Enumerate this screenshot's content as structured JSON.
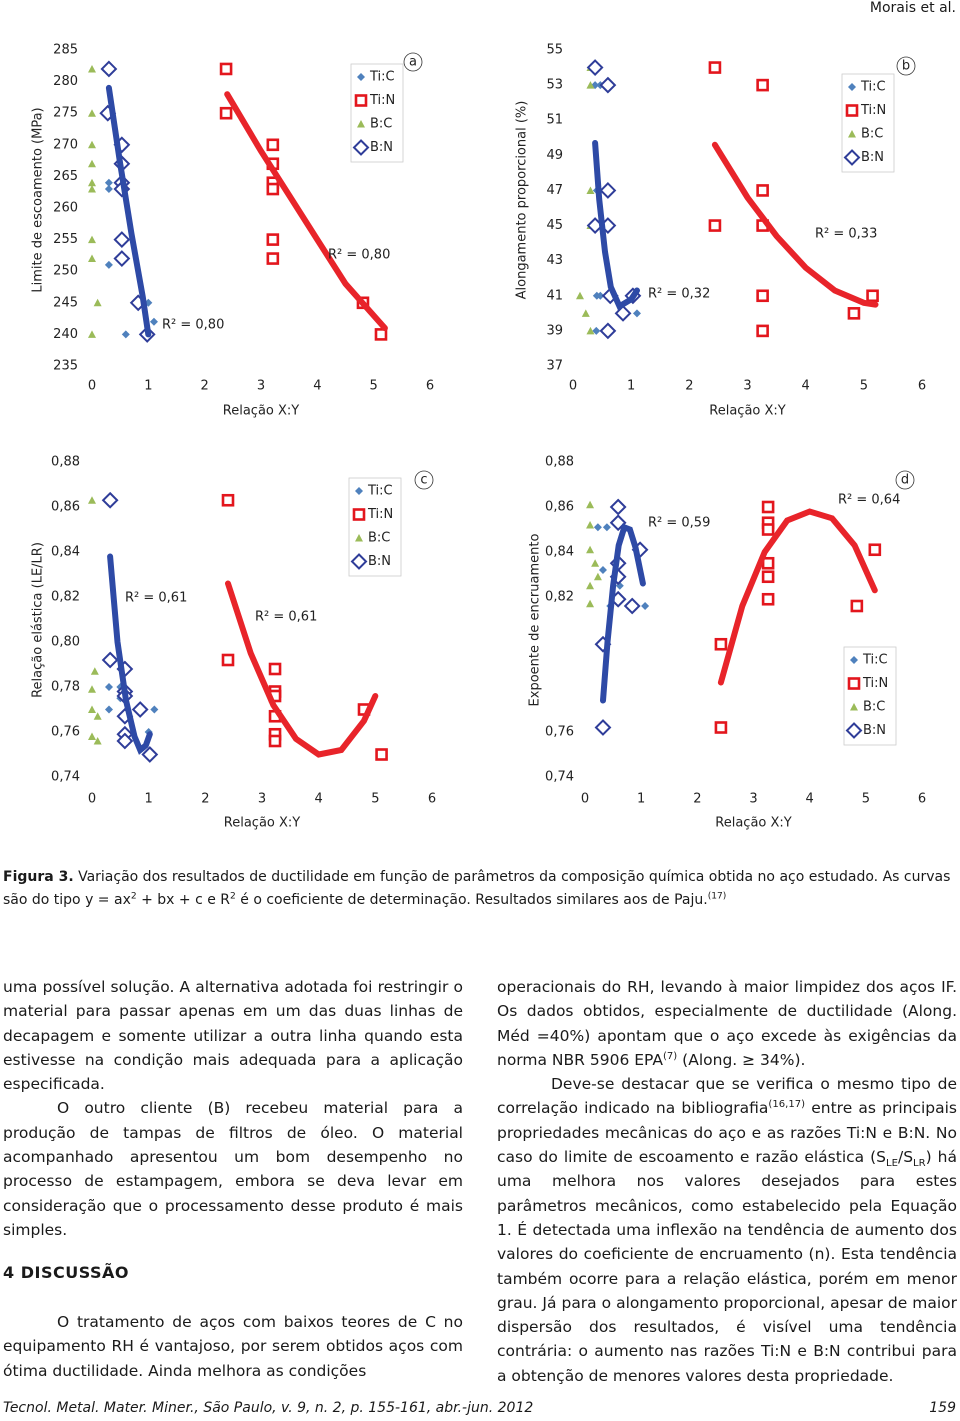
{
  "header": {
    "author": "Morais et al."
  },
  "chart_data": [
    {
      "type": "scatter",
      "panel_label": "a",
      "ylabel": "Limite de escoamento (MPa)",
      "xlabel": "Relação X:Y",
      "xlim": [
        0,
        6
      ],
      "xticks": [
        0,
        1,
        2,
        3,
        4,
        5,
        6
      ],
      "ylim": [
        235,
        285
      ],
      "yticks": [
        235,
        240,
        245,
        250,
        255,
        260,
        265,
        270,
        275,
        280,
        285
      ],
      "grid": false,
      "legend": "upper right",
      "series": [
        {
          "name": "Ti:C",
          "color": "#4f81bd",
          "marker": "diamond",
          "x": [
            0.3,
            0.3,
            0.5,
            0.5,
            0.5,
            0.6,
            0.3,
            0.6,
            1.0,
            1.1
          ],
          "values": [
            264,
            263,
            264,
            263,
            255,
            252,
            251,
            240,
            245,
            242
          ]
        },
        {
          "name": "Ti:N",
          "color": "#e3161d",
          "marker": "square",
          "x": [
            2.38,
            2.38,
            3.21,
            3.21,
            3.21,
            3.21,
            3.21,
            3.21,
            4.81,
            5.13
          ],
          "values": [
            282,
            275,
            270,
            267,
            264,
            263,
            255,
            252,
            245,
            240
          ]
        },
        {
          "name": "B:C",
          "color": "#9bbb59",
          "marker": "triangle",
          "x": [
            0,
            0,
            0,
            0,
            0,
            0,
            0,
            0,
            0.1,
            0
          ],
          "values": [
            282,
            275,
            270,
            267,
            264,
            263,
            255,
            252,
            245,
            240
          ]
        },
        {
          "name": "B:N",
          "color": "#2f3d99",
          "marker": "open-diamond",
          "x": [
            0.3,
            0.28,
            0.53,
            0.53,
            0.53,
            0.53,
            0.53,
            0.53,
            0.82,
            0.98
          ],
          "values": [
            282,
            275,
            270,
            267,
            264,
            263,
            255,
            252,
            245,
            240
          ]
        }
      ],
      "trendlines": [
        {
          "label": "R² = 0,80",
          "color": "#2e4aa6",
          "x": [
            0.3,
            0.5,
            0.7,
            0.9,
            1.0
          ],
          "y": [
            279,
            267,
            256,
            246,
            240
          ]
        },
        {
          "label": "R² = 0,80",
          "color": "#e8242a",
          "x": [
            2.4,
            3.0,
            3.5,
            4.0,
            4.5,
            5.2
          ],
          "y": [
            278,
            269,
            262,
            255,
            248,
            241
          ]
        }
      ]
    },
    {
      "type": "scatter",
      "panel_label": "b",
      "ylabel": "Alongamento proporcional (%)",
      "xlabel": "Relação X:Y",
      "xlim": [
        0,
        6
      ],
      "xticks": [
        0,
        1,
        2,
        3,
        4,
        5,
        6
      ],
      "ylim": [
        37,
        55
      ],
      "yticks": [
        37,
        39,
        41,
        43,
        45,
        47,
        49,
        51,
        53,
        55
      ],
      "grid": false,
      "legend": "upper right",
      "series": [
        {
          "name": "Ti:C",
          "color": "#4f81bd",
          "marker": "diamond",
          "x": [
            0.38,
            0.47,
            0.41,
            0.47,
            0.41,
            0.47,
            0.4,
            1.1
          ],
          "values": [
            53,
            53,
            47,
            45,
            41,
            41,
            39,
            40
          ]
        },
        {
          "name": "Ti:N",
          "color": "#e3161d",
          "marker": "square",
          "x": [
            2.44,
            3.26,
            3.26,
            2.44,
            3.26,
            3.26,
            3.26,
            4.83,
            5.15
          ],
          "values": [
            54,
            53,
            47,
            45,
            45,
            41,
            39,
            40,
            41
          ]
        },
        {
          "name": "B:C",
          "color": "#9bbb59",
          "marker": "triangle",
          "x": [
            0.3,
            0.3,
            0.3,
            0.3,
            0.12,
            0.22,
            0.3
          ],
          "values": [
            54,
            53,
            47,
            45,
            41,
            40,
            39
          ]
        },
        {
          "name": "B:N",
          "color": "#2f3d99",
          "marker": "open-diamond",
          "x": [
            0.38,
            0.6,
            0.6,
            0.38,
            0.6,
            0.64,
            0.86,
            0.6,
            1.03
          ],
          "values": [
            54,
            53,
            47,
            45,
            45,
            41,
            40,
            39,
            41
          ]
        }
      ],
      "trendlines": [
        {
          "label": "R² = 0,32",
          "color": "#2e4aa6",
          "x": [
            0.38,
            0.45,
            0.55,
            0.65,
            0.8,
            1.0,
            1.1
          ],
          "y": [
            49.7,
            46.5,
            43.5,
            41.5,
            40.4,
            40.8,
            41.3
          ]
        },
        {
          "label": "R² = 0,33",
          "color": "#e8242a",
          "x": [
            2.44,
            3.0,
            3.5,
            4.0,
            4.5,
            5.0,
            5.2
          ],
          "y": [
            49.6,
            46.6,
            44.4,
            42.6,
            41.3,
            40.6,
            40.5
          ]
        }
      ]
    },
    {
      "type": "scatter",
      "panel_label": "c",
      "ylabel": "Relação elástica (LE/LR)",
      "xlabel": "Relação X:Y",
      "xlim": [
        0,
        6
      ],
      "xticks": [
        0,
        1,
        2,
        3,
        4,
        5,
        6
      ],
      "ylim": [
        0.74,
        0.88
      ],
      "yticks": [
        {
          "value": 0.74,
          "label": "0,74"
        },
        {
          "value": 0.76,
          "label": "0,76"
        },
        {
          "value": 0.78,
          "label": "0,78"
        },
        {
          "value": 0.8,
          "label": "0,80"
        },
        {
          "value": 0.82,
          "label": "0,82"
        },
        {
          "value": 0.84,
          "label": "0,84"
        },
        {
          "value": 0.86,
          "label": "0,86"
        },
        {
          "value": 0.88,
          "label": "0,88"
        }
      ],
      "grid": false,
      "legend": "upper right",
      "series": [
        {
          "name": "Ti:C",
          "color": "#4f81bd",
          "marker": "diamond",
          "x": [
            0.3,
            0.5,
            0.5,
            0.6,
            0.3,
            0.6,
            1.0,
            1.1
          ],
          "values": [
            0.78,
            0.78,
            0.775,
            0.775,
            0.77,
            0.76,
            0.76,
            0.77
          ]
        },
        {
          "name": "Ti:N",
          "color": "#e3161d",
          "marker": "square",
          "x": [
            2.4,
            2.4,
            3.23,
            3.23,
            3.23,
            3.23,
            3.23,
            3.23,
            4.8,
            5.11
          ],
          "values": [
            0.863,
            0.792,
            0.788,
            0.778,
            0.776,
            0.767,
            0.759,
            0.756,
            0.77,
            0.75
          ]
        },
        {
          "name": "B:C",
          "color": "#9bbb59",
          "marker": "triangle",
          "x": [
            0,
            0.05,
            0,
            0,
            0.1,
            0,
            0.1
          ],
          "values": [
            0.863,
            0.787,
            0.779,
            0.77,
            0.767,
            0.758,
            0.756
          ]
        },
        {
          "name": "B:N",
          "color": "#2f3d99",
          "marker": "open-diamond",
          "x": [
            0.32,
            0.32,
            0.58,
            0.58,
            0.58,
            0.58,
            0.58,
            0.58,
            0.85,
            1.02
          ],
          "values": [
            0.863,
            0.792,
            0.788,
            0.778,
            0.776,
            0.767,
            0.759,
            0.756,
            0.77,
            0.75
          ]
        }
      ],
      "trendlines": [
        {
          "label": "R² = 0,61",
          "color": "#2e4aa6",
          "x": [
            0.32,
            0.45,
            0.6,
            0.75,
            0.85,
            0.95,
            1.02
          ],
          "y": [
            0.838,
            0.8,
            0.774,
            0.758,
            0.752,
            0.754,
            0.759
          ]
        },
        {
          "label": "R² = 0,61",
          "color": "#e8242a",
          "x": [
            2.4,
            2.8,
            3.2,
            3.6,
            4.0,
            4.4,
            4.8,
            5.0
          ],
          "y": [
            0.826,
            0.795,
            0.772,
            0.757,
            0.75,
            0.752,
            0.765,
            0.776
          ]
        }
      ]
    },
    {
      "type": "scatter",
      "panel_label": "d",
      "ylabel": "Expoente de encruamento",
      "xlabel": "Relação X:Y",
      "xlim": [
        0,
        6
      ],
      "xticks": [
        0,
        1,
        2,
        3,
        4,
        5,
        6
      ],
      "ylim": [
        0.74,
        0.88
      ],
      "yticks": [
        {
          "value": 0.74,
          "label": "0,74"
        },
        {
          "value": 0.76,
          "label": "0,76"
        },
        {
          "value": 0.82,
          "label": "0,82"
        },
        {
          "value": 0.84,
          "label": "0,84"
        },
        {
          "value": 0.86,
          "label": "0,86"
        },
        {
          "value": 0.88,
          "label": "0,88"
        }
      ],
      "grid": false,
      "legend": "lower right",
      "series": [
        {
          "name": "Ti:C",
          "color": "#4f81bd",
          "marker": "diamond",
          "x": [
            0.23,
            0.39,
            0.32,
            0.45,
            1.07,
            0.62
          ],
          "values": [
            0.851,
            0.851,
            0.832,
            0.816,
            0.816,
            0.825
          ]
        },
        {
          "name": "Ti:N",
          "color": "#e3161d",
          "marker": "square",
          "x": [
            2.42,
            2.42,
            3.26,
            3.26,
            3.26,
            3.26,
            3.26,
            3.26,
            4.84,
            5.16
          ],
          "values": [
            0.799,
            0.762,
            0.86,
            0.853,
            0.85,
            0.835,
            0.829,
            0.819,
            0.816,
            0.841
          ]
        },
        {
          "name": "B:C",
          "color": "#9bbb59",
          "marker": "triangle",
          "x": [
            0.09,
            0.09,
            0.09,
            0.18,
            0.09,
            0.09,
            0.23
          ],
          "values": [
            0.861,
            0.852,
            0.841,
            0.835,
            0.825,
            0.817,
            0.829
          ]
        },
        {
          "name": "B:N",
          "color": "#2f3d99",
          "marker": "open-diamond",
          "x": [
            0.32,
            0.32,
            0.59,
            0.59,
            0.59,
            0.59,
            0.59,
            0.84,
            0.98
          ],
          "values": [
            0.799,
            0.762,
            0.86,
            0.853,
            0.835,
            0.829,
            0.819,
            0.816,
            0.841
          ]
        }
      ],
      "trendlines": [
        {
          "label": "R² = 0,59",
          "color": "#2e4aa6",
          "x": [
            0.32,
            0.4,
            0.5,
            0.6,
            0.7,
            0.8,
            0.9,
            1.03
          ],
          "y": [
            0.774,
            0.8,
            0.825,
            0.843,
            0.851,
            0.85,
            0.842,
            0.826
          ]
        },
        {
          "label": "R² = 0,64",
          "color": "#e8242a",
          "x": [
            2.42,
            2.8,
            3.2,
            3.6,
            4.0,
            4.4,
            4.8,
            5.16
          ],
          "y": [
            0.782,
            0.816,
            0.84,
            0.854,
            0.858,
            0.855,
            0.843,
            0.823
          ]
        }
      ]
    }
  ],
  "caption": {
    "label": "Figura 3.",
    "runs": [
      {
        "text": "Variação dos resultados de ductilidade em função de parâmetros da composição química obtida no aço estudado. As curvas são do tipo y = ax"
      },
      {
        "sup": "2"
      },
      {
        "text": " + bx + c e R"
      },
      {
        "sup": "2"
      },
      {
        "text": " é o coeficiente de determinação. Resultados similares aos de Paju."
      },
      {
        "sup": "(17)"
      }
    ]
  },
  "body": {
    "left": [
      [
        {
          "text": "uma possível solução. A alternativa adotada foi restringir o material para passar apenas em um das duas linhas de decapagem e somente utilizar a outra linha quando esta estivesse na condição mais adequada para a aplicação especificada."
        }
      ],
      [
        {
          "text": "O outro cliente (B) recebeu material para a produção de tampas de filtros de óleo. O material acompanhado apresentou um bom desempenho no processo de estampagem, embora se deva levar em consideração que o processamento desse produto é mais simples."
        }
      ]
    ],
    "heading": "4 DISCUSSÃO",
    "left_after": [
      [
        {
          "text": "O tratamento de aços com baixos teores de C no equipamento RH é vantajoso, por serem obtidos aços com ótima ductilidade. Ainda melhora as condições"
        }
      ]
    ],
    "right": [
      [
        {
          "text": "operacionais do RH, levando à maior limpidez dos aços IF. Os dados obtidos, especialmente de ductilidade (Along. Méd =40%) apontam que o aço excede às exigências da norma NBR 5906 EPA"
        },
        {
          "sup": "(7)"
        },
        {
          "text": " (Along. ≥ 34%)."
        }
      ],
      [
        {
          "text": "Deve-se destacar que se verifica o mesmo tipo de correlação indicado na bibliografia"
        },
        {
          "sup": "(16,17)"
        },
        {
          "text": " entre as principais propriedades mecânicas do aço e as razões Ti:N e B:N. No caso do limite de escoamento e razão elástica (S"
        },
        {
          "sub": "LE"
        },
        {
          "text": "/S"
        },
        {
          "sub": "LR"
        },
        {
          "text": ") há uma melhora nos valores desejados para estes parâmetros mecânicos, como estabelecido pela Equação 1. É detectada uma inflexão na tendência de aumento dos valores do coeficiente de encruamento (n). Esta tendência também ocorre para a relação elástica, porém em menor grau. Já para o alongamento proporcional, apesar de maior dispersão dos resultados, é visível uma tendência contrária: o aumento nas razões Ti:N e B:N contribui para a obtenção de menores valores desta propriedade."
        }
      ]
    ]
  },
  "footer": {
    "citation": "Tecnol. Metal. Mater. Miner., São Paulo, v. 9, n. 2, p. 155-161, abr.-jun. 2012",
    "page": "159"
  }
}
